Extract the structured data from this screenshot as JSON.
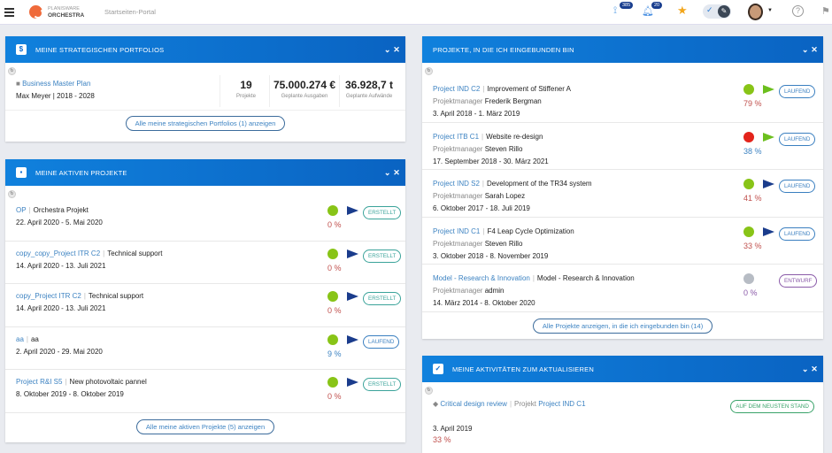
{
  "topbar": {
    "brand_top": "PLANISWARE",
    "brand_bottom": "ORCHESTRA",
    "portal": "Startseiten-Portal",
    "feed_count": "385",
    "notif_count": "20"
  },
  "portfolios": {
    "title": "MEINE STRATEGISCHEN PORTFOLIOS",
    "name": "Business Master Plan",
    "owner": "Max Meyer",
    "period": "| 2018 - 2028",
    "stats": [
      {
        "value": "19",
        "label": "Projekte"
      },
      {
        "value": "75.000.274 €",
        "label": "Geplante Ausgaben"
      },
      {
        "value": "36.928,7 t",
        "label": "Geplante Aufwände"
      }
    ],
    "button": "Alle meine strategischen Portfolios (1) anzeigen"
  },
  "active": {
    "title": "MEINE AKTIVEN PROJEKTE",
    "button": "Alle meine aktiven Projekte (5) anzeigen",
    "items": [
      {
        "code": "OP",
        "name": "Orchestra Projekt",
        "dates": "22. April 2020 - 5. Mai 2020",
        "pct": "0 %",
        "status": "ERSTELLT",
        "dot": "#88c417",
        "arrow": "#1a3c8c",
        "pct_color": "#c0504d",
        "status_color": "#3aa39a"
      },
      {
        "code": "copy_copy_Project ITR C2",
        "name": "Technical support",
        "dates": "14. April 2020 - 13. Juli 2021",
        "pct": "0 %",
        "status": "ERSTELLT",
        "dot": "#88c417",
        "arrow": "#1a3c8c",
        "pct_color": "#c0504d",
        "status_color": "#3aa39a"
      },
      {
        "code": "copy_Project ITR C2",
        "name": "Technical support",
        "dates": "14. April 2020 - 13. Juli 2021",
        "pct": "0 %",
        "status": "ERSTELLT",
        "dot": "#88c417",
        "arrow": "#1a3c8c",
        "pct_color": "#c0504d",
        "status_color": "#3aa39a"
      },
      {
        "code": "aa",
        "name": "aa",
        "dates": "2. April 2020 - 29. Mai 2020",
        "pct": "9 %",
        "status": "LAUFEND",
        "dot": "#88c417",
        "arrow": "#1a3c8c",
        "pct_color": "#3d83c2",
        "status_color": "#3a7fc0"
      },
      {
        "code": "Project R&I S5",
        "name": "New photovoltaic pannel",
        "dates": "8. Oktober 2019 - 8. Oktober 2019",
        "pct": "0 %",
        "status": "ERSTELLT",
        "dot": "#88c417",
        "arrow": "#1a3c8c",
        "pct_color": "#c0504d",
        "status_color": "#3aa39a"
      }
    ]
  },
  "involved": {
    "title": "PROJEKTE, IN DIE ICH EINGEBUNDEN BIN",
    "pm_label": "Projektmanager",
    "button": "Alle Projekte anzeigen, in die ich eingebunden bin (14)",
    "items": [
      {
        "code": "Project IND C2",
        "name": "Improvement of Stiffener A",
        "pm": "Frederik Bergman",
        "dates": "3. April 2018 - 1. März 2019",
        "pct": "79 %",
        "status": "LAUFEND",
        "dot": "#88c417",
        "arrow": "#6cbf1e",
        "pct_color": "#c0504d",
        "status_color": "#3a7fc0"
      },
      {
        "code": "Project ITB C1",
        "name": "Website re-design",
        "pm": "Steven Rillo",
        "dates": "17. September 2018 - 30. März 2021",
        "pct": "38 %",
        "status": "LAUFEND",
        "dot": "#e3241b",
        "arrow": "#6cbf1e",
        "pct_color": "#3d83c2",
        "status_color": "#3a7fc0"
      },
      {
        "code": "Project IND S2",
        "name": "Development of the TR34 system",
        "pm": "Sarah Lopez",
        "dates": "6. Oktober 2017 - 18. Juli 2019",
        "pct": "41 %",
        "status": "LAUFEND",
        "dot": "#88c417",
        "arrow": "#1a3c8c",
        "pct_color": "#c0504d",
        "status_color": "#3a7fc0"
      },
      {
        "code": "Project IND C1",
        "name": "F4 Leap Cycle Optimization",
        "pm": "Steven Rillo",
        "dates": "3. Oktober 2018 - 8. November 2019",
        "pct": "33 %",
        "status": "LAUFEND",
        "dot": "#88c417",
        "arrow": "#1a3c8c",
        "pct_color": "#c0504d",
        "status_color": "#3a7fc0"
      },
      {
        "code": "Model - Research & Innovation",
        "name": "Model - Research & Innovation",
        "pm": "admin",
        "dates": "14. März 2014 - 8. Oktober 2020",
        "pct": "0 %",
        "status": "ENTWURF",
        "dot": "#b7bcc4",
        "arrow": "",
        "pct_color": "#8a5aa8",
        "status_color": "#8a5aa8"
      }
    ]
  },
  "activities": {
    "title": "MEINE AKTIVITÄTEN ZUM AKTUALISIEREN",
    "items": [
      {
        "name": "Critical design review",
        "project_label": "Projekt",
        "project": "Project IND C1",
        "date": "3. April 2019",
        "pct": "33 %",
        "status": "AUF DEM NEUSTEN STAND"
      }
    ]
  }
}
